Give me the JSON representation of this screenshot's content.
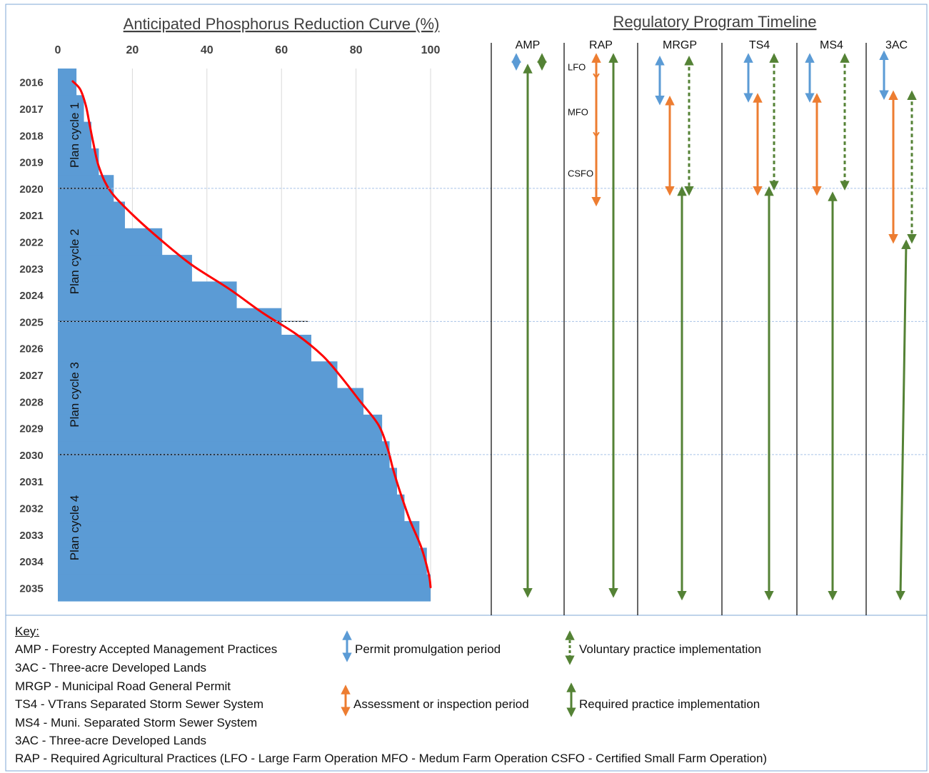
{
  "colors": {
    "bar": "#5b9bd5",
    "curve": "#ff0000",
    "permit": "#5b9bd5",
    "assessment": "#ed7d31",
    "implementation": "#548235",
    "divider": "#000000",
    "title": "#404040"
  },
  "chart_data": [
    {
      "type": "bar",
      "orientation": "horizontal",
      "title": "Anticipated Phosphorus Reduction Curve (%)",
      "xlim": [
        0,
        100
      ],
      "x_ticks": [
        "0",
        "20",
        "40",
        "60",
        "80",
        "100"
      ],
      "x_tick_values": [
        0,
        20,
        40,
        60,
        80,
        100
      ],
      "categories": [
        "2016",
        "2017",
        "2018",
        "2019",
        "2020",
        "2021",
        "2022",
        "2023",
        "2024",
        "2025",
        "2026",
        "2027",
        "2028",
        "2029",
        "2030",
        "2031",
        "2032",
        "2033",
        "2034",
        "2035"
      ],
      "values": [
        5,
        7,
        9,
        11,
        15,
        18,
        28,
        36,
        48,
        60,
        68,
        75,
        82,
        87,
        89,
        91,
        93,
        97,
        99,
        100
      ],
      "curve": [
        [
          4,
          2016
        ],
        [
          6,
          2016.3
        ],
        [
          7.5,
          2016.9
        ],
        [
          8.5,
          2017.6
        ],
        [
          9.5,
          2018.3
        ],
        [
          11,
          2019.2
        ],
        [
          14,
          2020.1
        ],
        [
          20,
          2021.0
        ],
        [
          28,
          2022.0
        ],
        [
          36,
          2022.9
        ],
        [
          46,
          2023.8
        ],
        [
          55,
          2024.7
        ],
        [
          64,
          2025.5
        ],
        [
          71,
          2026.3
        ],
        [
          76,
          2027.1
        ],
        [
          81,
          2028.0
        ],
        [
          86,
          2028.9
        ],
        [
          88.5,
          2029.8
        ],
        [
          90,
          2030.6
        ],
        [
          92,
          2031.5
        ],
        [
          94.5,
          2032.5
        ],
        [
          97.5,
          2033.5
        ],
        [
          99.5,
          2034.5
        ],
        [
          100,
          2035
        ]
      ],
      "plan_cycles": [
        {
          "label": "Plan cycle 1",
          "start": 2016,
          "end": 2020.5,
          "divider_end_value": 14
        },
        {
          "label": "Plan cycle 2",
          "start": 2020.5,
          "end": 2025.5,
          "divider_end_value": 67
        },
        {
          "label": "Plan cycle 3",
          "start": 2025.5,
          "end": 2030.5,
          "divider_end_value": 89
        },
        {
          "label": "Plan cycle 4",
          "start": 2030.5,
          "end": 2035.5,
          "divider_end_value": null
        }
      ]
    },
    {
      "type": "timeline",
      "title": "Regulatory Program Timeline",
      "programs": [
        {
          "name": "AMP",
          "bars": [
            {
              "kind": "permit",
              "start": 2015.6,
              "end": 2015.9
            },
            {
              "kind": "voluntary",
              "start": 2015.6,
              "end": 2015.9
            },
            {
              "kind": "required",
              "start": 2016,
              "end": 2035.7
            }
          ]
        },
        {
          "name": "RAP",
          "bars": [
            {
              "kind": "assessment",
              "start": 2015.6,
              "end": 2021.0
            },
            {
              "kind": "required",
              "start": 2015.6,
              "end": 2035.7
            }
          ],
          "sub_labels": [
            {
              "text": "LFO",
              "at": 2015.9
            },
            {
              "text": "MFO",
              "at": 2017.6
            },
            {
              "text": "CSFO",
              "at": 2019.9
            }
          ],
          "segment_ticks": [
            2016.3,
            2018.5
          ]
        },
        {
          "name": "MRGP",
          "bars": [
            {
              "kind": "permit",
              "start": 2015.7,
              "end": 2017.2
            },
            {
              "kind": "assessment",
              "start": 2017.2,
              "end": 2020.6
            },
            {
              "kind": "voluntary",
              "start": 2015.7,
              "end": 2020.6
            },
            {
              "kind": "required",
              "start": 2020.6,
              "end": 2035.8
            }
          ]
        },
        {
          "name": "TS4",
          "bars": [
            {
              "kind": "permit",
              "start": 2015.6,
              "end": 2017.1
            },
            {
              "kind": "assessment",
              "start": 2017.1,
              "end": 2020.6
            },
            {
              "kind": "voluntary",
              "start": 2015.6,
              "end": 2020.4
            },
            {
              "kind": "required",
              "start": 2020.6,
              "end": 2035.8
            }
          ]
        },
        {
          "name": "MS4",
          "bars": [
            {
              "kind": "permit",
              "start": 2015.6,
              "end": 2017.1
            },
            {
              "kind": "assessment",
              "start": 2017.1,
              "end": 2020.6
            },
            {
              "kind": "voluntary",
              "start": 2015.6,
              "end": 2020.4
            },
            {
              "kind": "required",
              "start": 2020.8,
              "end": 2035.8
            }
          ]
        },
        {
          "name": "3AC",
          "bars": [
            {
              "kind": "permit",
              "start": 2015.5,
              "end": 2017.0
            },
            {
              "kind": "assessment",
              "start": 2017.0,
              "end": 2022.4
            },
            {
              "kind": "voluntary",
              "start": 2017.0,
              "end": 2022.4
            },
            {
              "kind": "required",
              "start": 2022.6,
              "end": 2035.8
            }
          ]
        }
      ]
    }
  ],
  "key": {
    "title": "Key:",
    "definitions": [
      "AMP  - Forestry Accepted Management Practices",
      "3AC - Three-acre Developed Lands",
      "MRGP - Municipal Road General Permit",
      "TS4 - VTrans Separated Storm Sewer System",
      "MS4 - Muni. Separated Storm Sewer System",
      "3AC - Three-acre Developed Lands",
      "RAP - Required Agricultural Practices  (LFO - Large Farm Operation   MFO - Medum Farm Operation   CSFO - Certified Small Farm Operation)"
    ],
    "legend": {
      "permit": "Permit promulgation period",
      "assessment": "Assessment or inspection period",
      "voluntary": "Voluntary practice implementation",
      "required": "Required practice implementation"
    }
  }
}
